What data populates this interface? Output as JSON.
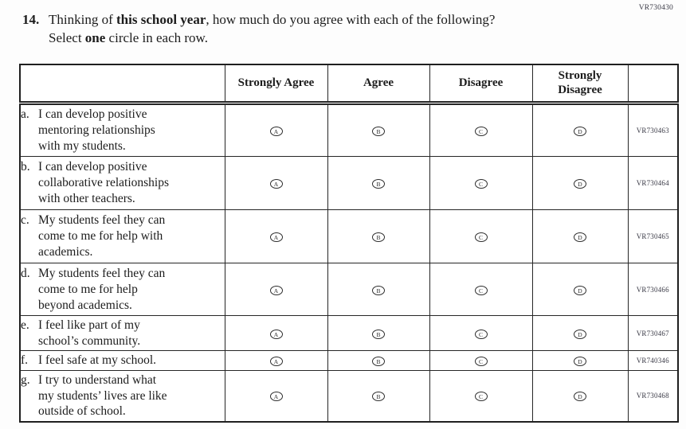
{
  "page": {
    "corner_code": "VR730430"
  },
  "question": {
    "number": "14.",
    "line1_pre": "Thinking of ",
    "line1_bold": "this school year",
    "line1_post": ", how much do you agree with each of the following?",
    "line2_pre": "Select ",
    "line2_bold": "one",
    "line2_post": " circle in each row."
  },
  "table": {
    "columns": [
      "Strongly Agree",
      "Agree",
      "Disagree",
      "Strongly\nDisagree"
    ],
    "bubble_letters": [
      "A",
      "B",
      "C",
      "D"
    ],
    "rows": [
      {
        "label": "a.",
        "statement": "I can develop positive\nmentoring relationships\nwith my students.",
        "code": "VR730463"
      },
      {
        "label": "b.",
        "statement": "I can develop positive\ncollaborative relationships\nwith other teachers.",
        "code": "VR730464"
      },
      {
        "label": "c.",
        "statement": "My students feel they can\ncome to me for help with\nacademics.",
        "code": "VR730465"
      },
      {
        "label": "d.",
        "statement": "My students feel they can\ncome to me for help\nbeyond academics.",
        "code": "VR730466"
      },
      {
        "label": "e.",
        "statement": "I feel like part of my\nschool’s community.",
        "code": "VR730467"
      },
      {
        "label": "f.",
        "statement": "I feel safe at my school.",
        "code": "VR740346"
      },
      {
        "label": "g.",
        "statement": "I try to understand what\nmy students’ lives are like\noutside of school.",
        "code": "VR730468"
      }
    ]
  }
}
